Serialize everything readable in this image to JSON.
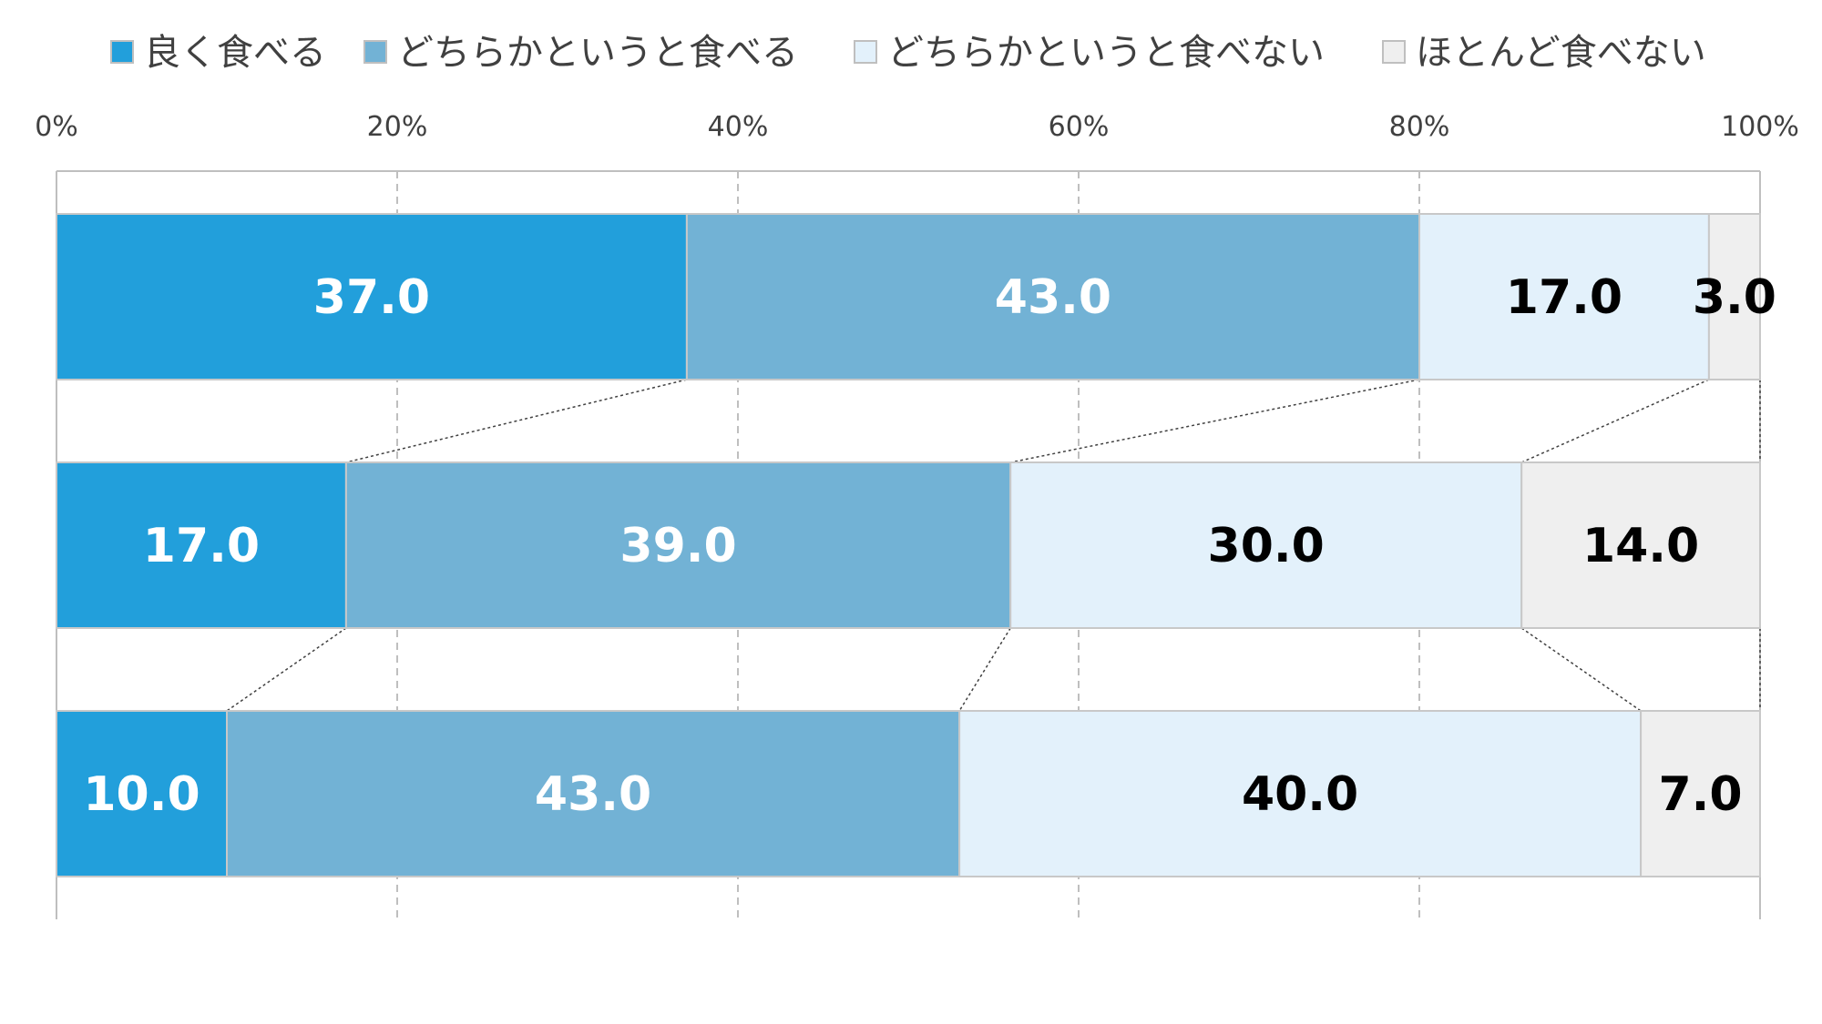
{
  "chart_data": {
    "type": "bar",
    "orientation": "horizontal",
    "stacked": true,
    "percent_axis": true,
    "xlim": [
      0,
      100
    ],
    "x_ticks": [
      "0%",
      "20%",
      "40%",
      "60%",
      "80%",
      "100%"
    ],
    "x_tick_values": [
      0,
      20,
      40,
      60,
      80,
      100
    ],
    "grid": true,
    "legend_position": "top",
    "connector_lines": true,
    "categories": [
      "",
      "",
      ""
    ],
    "series": [
      {
        "name": "良く食べる",
        "values": [
          37.0,
          17.0,
          10.0
        ],
        "labels": [
          "37.0",
          "17.0",
          "10.0"
        ],
        "color": "#229fdb",
        "label_color": "#ffffff"
      },
      {
        "name": "どちらかというと食べる",
        "values": [
          43.0,
          39.0,
          43.0
        ],
        "labels": [
          "43.0",
          "39.0",
          "43.0"
        ],
        "color": "#72b2d5",
        "label_color": "#ffffff"
      },
      {
        "name": "どちらかというと食べない",
        "values": [
          17.0,
          30.0,
          40.0
        ],
        "labels": [
          "17.0",
          "30.0",
          "40.0"
        ],
        "color": "#e3f1fb",
        "label_color": "#000000"
      },
      {
        "name": "ほとんど食べない",
        "values": [
          3.0,
          14.0,
          7.0
        ],
        "labels": [
          "3.0",
          "14.0",
          "7.0"
        ],
        "color": "#efefef",
        "label_color": "#000000"
      }
    ]
  }
}
